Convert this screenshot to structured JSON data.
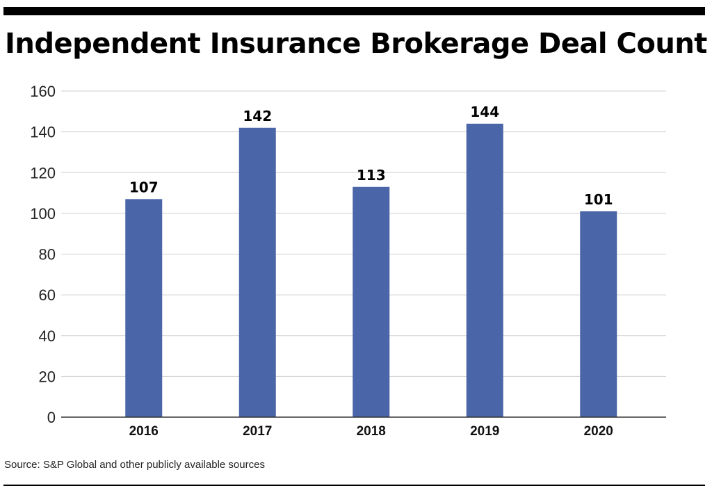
{
  "chart_data": {
    "type": "bar",
    "title": "Independent Insurance Brokerage Deal Count",
    "categories": [
      "2016",
      "2017",
      "2018",
      "2019",
      "2020"
    ],
    "values": [
      107,
      142,
      113,
      144,
      101
    ],
    "ylim": [
      0,
      160
    ],
    "yticks": [
      0,
      20,
      40,
      60,
      80,
      100,
      120,
      140,
      160
    ],
    "xlabel": "",
    "ylabel": "",
    "grid": true,
    "bar_color": "#4a65a8",
    "source": "Source: S&P Global and other publicly available sources"
  }
}
